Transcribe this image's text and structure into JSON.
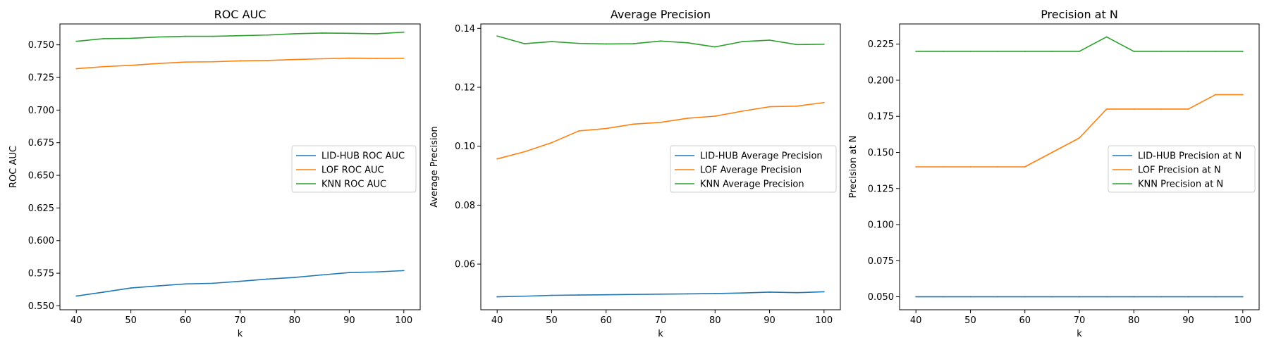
{
  "chart_data": [
    {
      "type": "line",
      "title": "ROC AUC",
      "xlabel": "k",
      "ylabel": "ROC AUC",
      "xlim": [
        37,
        103
      ],
      "ylim": [
        0.547,
        0.766
      ],
      "xticks": [
        40,
        50,
        60,
        70,
        80,
        90,
        100
      ],
      "xtick_labels": [
        "40",
        "50",
        "60",
        "70",
        "80",
        "90",
        "100"
      ],
      "yticks": [
        0.55,
        0.575,
        0.6,
        0.625,
        0.65,
        0.675,
        0.7,
        0.725,
        0.75
      ],
      "ytick_labels": [
        "0.550",
        "0.575",
        "0.600",
        "0.625",
        "0.650",
        "0.675",
        "0.700",
        "0.725",
        "0.750"
      ],
      "legend": "center-right",
      "x": [
        40,
        45,
        50,
        55,
        60,
        65,
        70,
        75,
        80,
        85,
        90,
        95,
        100
      ],
      "series": [
        {
          "name": "LID-HUB ROC AUC",
          "color": "#1f77b4",
          "values": [
            0.5575,
            0.5605,
            0.5637,
            0.5653,
            0.5668,
            0.5673,
            0.5688,
            0.5705,
            0.5718,
            0.5737,
            0.5755,
            0.576,
            0.577
          ]
        },
        {
          "name": "LOF ROC AUC",
          "color": "#ff7f0e",
          "values": [
            0.7317,
            0.7333,
            0.7343,
            0.7357,
            0.7368,
            0.737,
            0.7377,
            0.738,
            0.7387,
            0.7393,
            0.7398,
            0.7396,
            0.7397
          ]
        },
        {
          "name": "KNN ROC AUC",
          "color": "#2ca02c",
          "values": [
            0.7527,
            0.7547,
            0.755,
            0.756,
            0.7565,
            0.7565,
            0.757,
            0.7575,
            0.7585,
            0.759,
            0.7588,
            0.7585,
            0.7597
          ]
        }
      ]
    },
    {
      "type": "line",
      "title": "Average Precision",
      "xlabel": "k",
      "ylabel": "Average Precision",
      "xlim": [
        37,
        103
      ],
      "ylim": [
        0.0445,
        0.1415
      ],
      "xticks": [
        40,
        50,
        60,
        70,
        80,
        90,
        100
      ],
      "xtick_labels": [
        "40",
        "50",
        "60",
        "70",
        "80",
        "90",
        "100"
      ],
      "yticks": [
        0.06,
        0.08,
        0.1,
        0.12,
        0.14
      ],
      "ytick_labels": [
        "0.06",
        "0.08",
        "0.10",
        "0.12",
        "0.14"
      ],
      "legend": "center-right",
      "x": [
        40,
        45,
        50,
        55,
        60,
        65,
        70,
        75,
        80,
        85,
        90,
        95,
        100
      ],
      "series": [
        {
          "name": "LID-HUB Average Precision",
          "color": "#1f77b4",
          "values": [
            0.0489,
            0.0491,
            0.0494,
            0.0495,
            0.0496,
            0.0497,
            0.0498,
            0.0499,
            0.05,
            0.0502,
            0.0505,
            0.0503,
            0.0506
          ]
        },
        {
          "name": "LOF Average Precision",
          "color": "#ff7f0e",
          "values": [
            0.0957,
            0.0981,
            0.1012,
            0.1052,
            0.106,
            0.1075,
            0.1081,
            0.1095,
            0.1102,
            0.1119,
            0.1134,
            0.1136,
            0.1148
          ]
        },
        {
          "name": "KNN Average Precision",
          "color": "#2ca02c",
          "values": [
            0.1374,
            0.1348,
            0.1355,
            0.1349,
            0.1347,
            0.1348,
            0.1357,
            0.1351,
            0.1337,
            0.1355,
            0.136,
            0.1345,
            0.1346
          ]
        }
      ]
    },
    {
      "type": "line",
      "title": "Precision at N",
      "xlabel": "k",
      "ylabel": "Precision at N",
      "xlim": [
        37,
        103
      ],
      "ylim": [
        0.041,
        0.239
      ],
      "xticks": [
        40,
        50,
        60,
        70,
        80,
        90,
        100
      ],
      "xtick_labels": [
        "40",
        "50",
        "60",
        "70",
        "80",
        "90",
        "100"
      ],
      "yticks": [
        0.05,
        0.075,
        0.1,
        0.125,
        0.15,
        0.175,
        0.2,
        0.225
      ],
      "ytick_labels": [
        "0.050",
        "0.075",
        "0.100",
        "0.125",
        "0.150",
        "0.175",
        "0.200",
        "0.225"
      ],
      "legend": "center-right",
      "x": [
        40,
        45,
        50,
        55,
        60,
        65,
        70,
        75,
        80,
        85,
        90,
        95,
        100
      ],
      "series": [
        {
          "name": "LID-HUB Precision at N",
          "color": "#1f77b4",
          "values": [
            0.05,
            0.05,
            0.05,
            0.05,
            0.05,
            0.05,
            0.05,
            0.05,
            0.05,
            0.05,
            0.05,
            0.05,
            0.05
          ]
        },
        {
          "name": "LOF Precision at N",
          "color": "#ff7f0e",
          "values": [
            0.14,
            0.14,
            0.14,
            0.14,
            0.14,
            0.15,
            0.16,
            0.18,
            0.18,
            0.18,
            0.18,
            0.19,
            0.19
          ]
        },
        {
          "name": "KNN Precision at N",
          "color": "#2ca02c",
          "values": [
            0.22,
            0.22,
            0.22,
            0.22,
            0.22,
            0.22,
            0.22,
            0.23,
            0.22,
            0.22,
            0.22,
            0.22,
            0.22
          ]
        }
      ]
    }
  ]
}
